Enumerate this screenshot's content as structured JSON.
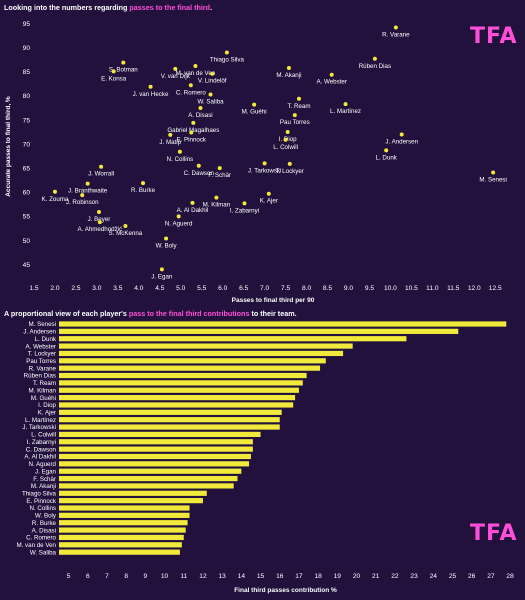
{
  "title1": {
    "pre": "Looking into the numbers regarding ",
    "highlight": "passes to the final third",
    "post": "."
  },
  "title2": {
    "pre": "A proportional view of each player's ",
    "highlight": "pass to the final third contributions",
    "post": " to their team."
  },
  "logo": "TFA",
  "colors": {
    "background": "#22113d",
    "accent": "#ff4fd8",
    "bar": "#f2ea3a",
    "point": "#f2ea3a",
    "text": "#ffffff"
  },
  "chart_data": [
    {
      "type": "scatter",
      "title": "Looking into the numbers regarding passes to the final third.",
      "xlabel": "Passes to final third per 90",
      "ylabel": "Accurate passes to final third, %",
      "xlim": [
        1.5,
        12.9
      ],
      "ylim": [
        42,
        97
      ],
      "xticks": [
        1.5,
        2.0,
        2.5,
        3.0,
        3.5,
        4.0,
        4.5,
        5.0,
        5.5,
        6.0,
        6.5,
        7.0,
        7.5,
        8.0,
        8.5,
        9.0,
        9.5,
        10.0,
        10.5,
        11.0,
        11.5,
        12.0,
        12.5
      ],
      "xtick_labels": [
        "1.5",
        "2.0",
        "2.5",
        "3.0",
        "3.5",
        "4.0",
        "4.5",
        "5.0",
        "5.5",
        "6.0",
        "6.5",
        "7.0",
        "7.5",
        "8.0",
        "8.5",
        "9.0",
        "9.5",
        "10.0",
        "10.5",
        "11.0",
        "11.5",
        "12.0",
        "12.5"
      ],
      "yticks": [
        45,
        50,
        55,
        60,
        65,
        70,
        75,
        80,
        85,
        90,
        95
      ],
      "ytick_labels": [
        "45",
        "50",
        "55",
        "60",
        "65",
        "70",
        "75",
        "80",
        "85",
        "90",
        "95"
      ],
      "points": [
        {
          "name": "R. Varane",
          "x": 10.13,
          "y": 94.2
        },
        {
          "name": "Thiago Silva",
          "x": 6.1,
          "y": 89.0
        },
        {
          "name": "Rúben Dias",
          "x": 9.63,
          "y": 87.7
        },
        {
          "name": "M. van de Ven",
          "x": 5.35,
          "y": 86.2
        },
        {
          "name": "S. Botman",
          "x": 3.63,
          "y": 86.9
        },
        {
          "name": "V. van Dijk",
          "x": 4.87,
          "y": 85.6
        },
        {
          "name": "V. Lindelöf",
          "x": 5.75,
          "y": 84.6
        },
        {
          "name": "E. Konsa",
          "x": 3.4,
          "y": 85.1
        },
        {
          "name": "M. Akanji",
          "x": 7.58,
          "y": 85.8
        },
        {
          "name": "A. Webster",
          "x": 8.6,
          "y": 84.4
        },
        {
          "name": "C. Romero",
          "x": 5.24,
          "y": 82.2
        },
        {
          "name": "J. van Hecke",
          "x": 4.28,
          "y": 81.9
        },
        {
          "name": "W. Saliba",
          "x": 5.71,
          "y": 80.3
        },
        {
          "name": "T. Ream",
          "x": 7.82,
          "y": 79.4
        },
        {
          "name": "M. Guéhi",
          "x": 6.75,
          "y": 78.2
        },
        {
          "name": "L. Martínez",
          "x": 8.93,
          "y": 78.3
        },
        {
          "name": "A. Disasi",
          "x": 5.47,
          "y": 77.5
        },
        {
          "name": "Pau Torres",
          "x": 7.72,
          "y": 76.0
        },
        {
          "name": "Gabriel Magalhaes",
          "x": 5.3,
          "y": 74.4
        },
        {
          "name": "E. Pinnock",
          "x": 5.25,
          "y": 72.4
        },
        {
          "name": "I. Diop",
          "x": 7.55,
          "y": 72.5
        },
        {
          "name": "J. Matip",
          "x": 4.75,
          "y": 71.9
        },
        {
          "name": "J. Andersen",
          "x": 10.27,
          "y": 72.0
        },
        {
          "name": "L. Colwill",
          "x": 7.5,
          "y": 70.9
        },
        {
          "name": "L. Dunk",
          "x": 9.9,
          "y": 68.7
        },
        {
          "name": "N. Collins",
          "x": 4.98,
          "y": 68.4
        },
        {
          "name": "J. Worrall",
          "x": 3.1,
          "y": 65.3
        },
        {
          "name": "C. Dawson",
          "x": 5.43,
          "y": 65.5
        },
        {
          "name": "F. Schär",
          "x": 5.93,
          "y": 65.0
        },
        {
          "name": "J. Tarkowski",
          "x": 7.0,
          "y": 66.0
        },
        {
          "name": "T. Lockyer",
          "x": 7.6,
          "y": 65.9
        },
        {
          "name": "M. Senesi",
          "x": 12.45,
          "y": 64.1
        },
        {
          "name": "J. Branthwaite",
          "x": 2.78,
          "y": 61.8
        },
        {
          "name": "R. Burke",
          "x": 4.1,
          "y": 61.9
        },
        {
          "name": "K. Zouma",
          "x": 2.0,
          "y": 60.1
        },
        {
          "name": "J. Robinson",
          "x": 2.65,
          "y": 59.4
        },
        {
          "name": "M. Kilman",
          "x": 5.85,
          "y": 58.9
        },
        {
          "name": "K. Ajer",
          "x": 7.1,
          "y": 59.7
        },
        {
          "name": "A. Al Dakhil",
          "x": 5.28,
          "y": 57.8
        },
        {
          "name": "I. Zabarnyi",
          "x": 6.52,
          "y": 57.7
        },
        {
          "name": "J. Beyer",
          "x": 3.05,
          "y": 55.9
        },
        {
          "name": "N. Aguerd",
          "x": 4.95,
          "y": 55.0
        },
        {
          "name": "A. Ahmedhodžić",
          "x": 3.07,
          "y": 53.8
        },
        {
          "name": "S. McKenna",
          "x": 3.68,
          "y": 53.0
        },
        {
          "name": "W. Boly",
          "x": 4.65,
          "y": 50.4
        },
        {
          "name": "J. Egan",
          "x": 4.55,
          "y": 44.0
        }
      ]
    },
    {
      "type": "bar",
      "orientation": "horizontal",
      "title": "A proportional view of each player's pass to the final third contributions to their team.",
      "xlabel": "Final third passes contribution %",
      "xlim": [
        4.5,
        28.1
      ],
      "xticks": [
        5,
        6,
        7,
        8,
        9,
        10,
        11,
        12,
        13,
        14,
        15,
        16,
        17,
        18,
        19,
        20,
        21,
        22,
        23,
        24,
        25,
        26,
        27,
        28
      ],
      "xtick_labels": [
        "5",
        "6",
        "7",
        "8",
        "9",
        "10",
        "11",
        "12",
        "13",
        "14",
        "15",
        "16",
        "17",
        "18",
        "19",
        "20",
        "21",
        "22",
        "23",
        "24",
        "25",
        "26",
        "27",
        "28"
      ],
      "categories": [
        "M. Senesi",
        "J. Andersen",
        "L. Dunk",
        "A. Webster",
        "T. Lockyer",
        "Pau Torres",
        "R. Varane",
        "Rúben Dias",
        "T. Ream",
        "M. Kilman",
        "M. Guéhi",
        "I. Diop",
        "K. Ajer",
        "L. Martínez",
        "J. Tarkowski",
        "L. Colwill",
        "I. Zabarnyi",
        "C. Dawson",
        "A. Al Dakhil",
        "N. Aguerd",
        "J. Egan",
        "F. Schär",
        "M. Akanji",
        "Thiago Silva",
        "E. Pinnock",
        "N. Collins",
        "W. Boly",
        "R. Burke",
        "A. Disasi",
        "C. Romero",
        "M. van de Ven",
        "W. Saliba"
      ],
      "values": [
        27.8,
        25.3,
        22.6,
        19.8,
        19.3,
        18.4,
        18.1,
        17.4,
        17.2,
        17.0,
        16.8,
        16.7,
        16.1,
        16.0,
        16.0,
        15.0,
        14.6,
        14.6,
        14.5,
        14.4,
        14.0,
        13.8,
        13.6,
        12.2,
        12.0,
        11.3,
        11.3,
        11.2,
        11.1,
        11.0,
        10.9,
        10.8
      ]
    }
  ]
}
